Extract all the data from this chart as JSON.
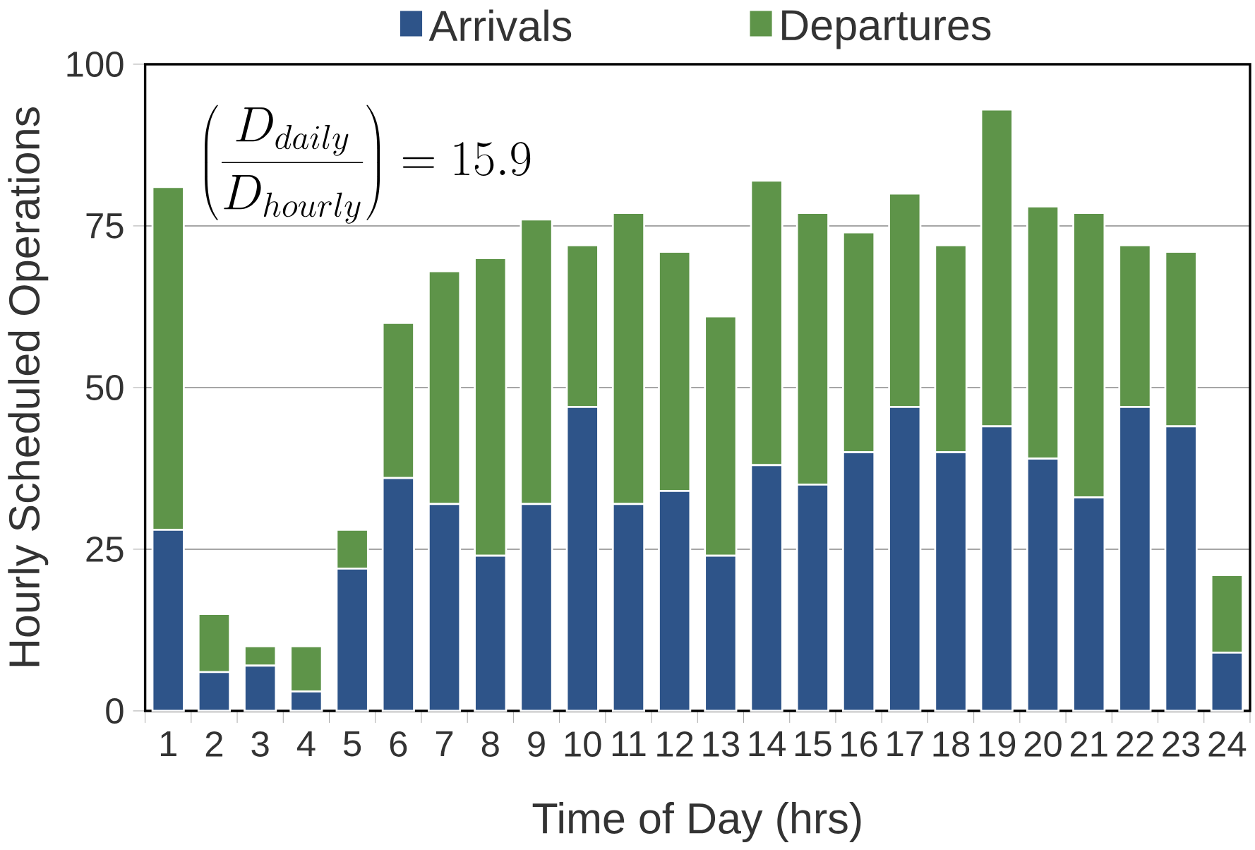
{
  "chart_data": {
    "type": "bar",
    "stacked": true,
    "xlabel": "Time of Day (hrs)",
    "ylabel": "Hourly Scheduled Operations",
    "categories": [
      "1",
      "2",
      "3",
      "4",
      "5",
      "6",
      "7",
      "8",
      "9",
      "10",
      "11",
      "12",
      "13",
      "14",
      "15",
      "16",
      "17",
      "18",
      "19",
      "20",
      "21",
      "22",
      "23",
      "24"
    ],
    "series": [
      {
        "name": "Arrivals",
        "color": "#2e5489",
        "values": [
          28,
          6,
          7,
          3,
          22,
          36,
          32,
          24,
          32,
          47,
          32,
          34,
          24,
          38,
          35,
          40,
          47,
          40,
          44,
          39,
          33,
          47,
          44,
          9
        ]
      },
      {
        "name": "Departures",
        "color": "#5e9449",
        "values": [
          53,
          9,
          3,
          7,
          6,
          24,
          36,
          46,
          44,
          25,
          45,
          37,
          37,
          44,
          42,
          34,
          33,
          32,
          49,
          39,
          44,
          25,
          27,
          12
        ]
      }
    ],
    "ylim": [
      0,
      100
    ],
    "yticks": [
      0,
      25,
      50,
      75,
      100
    ],
    "grid": "y",
    "legend": "top",
    "annotations": [
      "\\left(\\frac{D_{daily}}{D_{hourly}}\\right)=15.9"
    ]
  }
}
